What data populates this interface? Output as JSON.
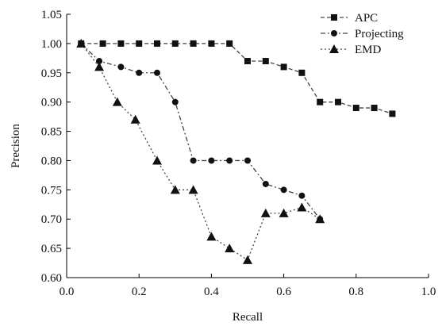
{
  "chart_data": {
    "type": "line",
    "xlabel": "Recall",
    "ylabel": "Precision",
    "xlim": [
      0.0,
      1.0
    ],
    "ylim": [
      0.6,
      1.05
    ],
    "xticks": [
      "0.0",
      "0.2",
      "0.4",
      "0.6",
      "0.8",
      "1.0"
    ],
    "yticks": [
      "0.60",
      "0.65",
      "0.70",
      "0.75",
      "0.80",
      "0.85",
      "0.90",
      "0.95",
      "1.00",
      "1.05"
    ],
    "grid": false,
    "legend_position": "top-right",
    "series": [
      {
        "name": "APC",
        "marker": "square",
        "line_style": "dashed",
        "color": "#444444",
        "x": [
          0.04,
          0.1,
          0.15,
          0.2,
          0.25,
          0.3,
          0.35,
          0.4,
          0.45,
          0.5,
          0.55,
          0.6,
          0.65,
          0.7,
          0.75,
          0.8,
          0.85,
          0.9
        ],
        "y": [
          1.0,
          1.0,
          1.0,
          1.0,
          1.0,
          1.0,
          1.0,
          1.0,
          1.0,
          0.97,
          0.97,
          0.96,
          0.95,
          0.9,
          0.9,
          0.89,
          0.89,
          0.88
        ]
      },
      {
        "name": "Projecting",
        "marker": "circle",
        "line_style": "dashdot",
        "color": "#444444",
        "x": [
          0.04,
          0.09,
          0.15,
          0.2,
          0.25,
          0.3,
          0.35,
          0.4,
          0.45,
          0.5,
          0.55,
          0.6,
          0.65,
          0.7
        ],
        "y": [
          1.0,
          0.97,
          0.96,
          0.95,
          0.95,
          0.9,
          0.8,
          0.8,
          0.8,
          0.8,
          0.76,
          0.75,
          0.74,
          0.7
        ]
      },
      {
        "name": "EMD",
        "marker": "triangle",
        "line_style": "dotted",
        "color": "#444444",
        "x": [
          0.04,
          0.09,
          0.14,
          0.19,
          0.25,
          0.3,
          0.35,
          0.4,
          0.45,
          0.5,
          0.55,
          0.6,
          0.65,
          0.7
        ],
        "y": [
          1.0,
          0.96,
          0.9,
          0.87,
          0.8,
          0.75,
          0.75,
          0.67,
          0.65,
          0.63,
          0.71,
          0.71,
          0.72,
          0.7
        ]
      }
    ]
  }
}
